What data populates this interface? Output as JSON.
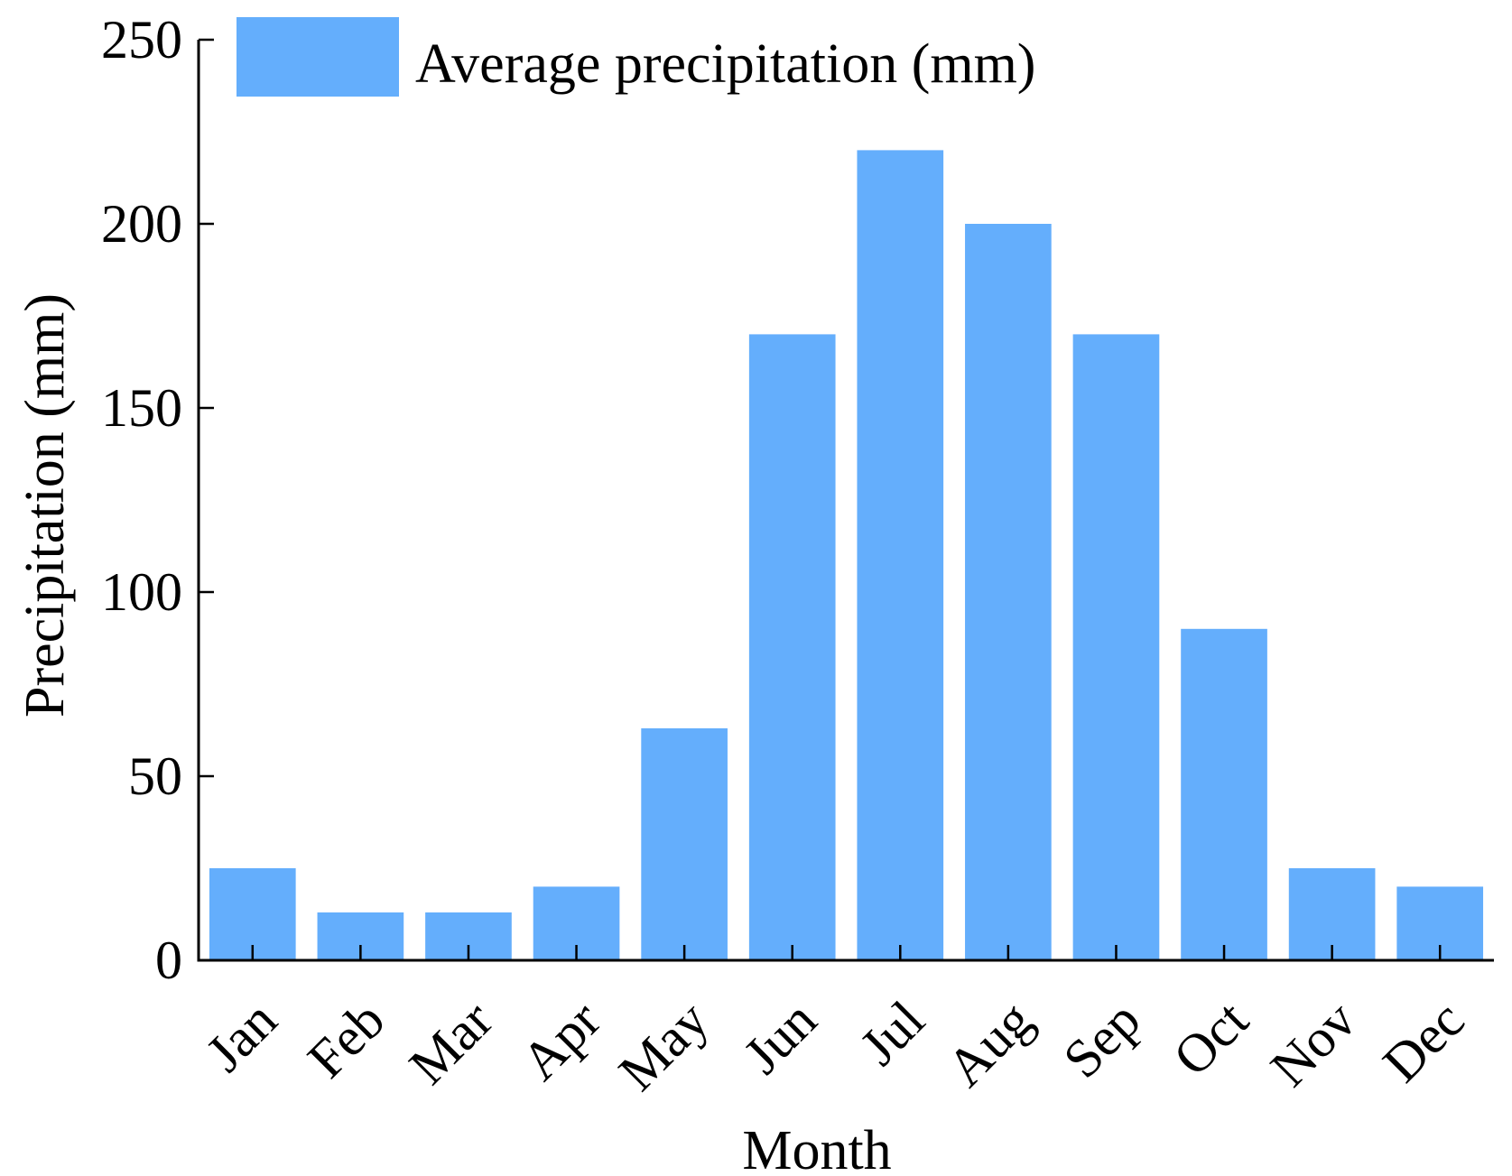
{
  "chart_data": {
    "type": "bar",
    "title": "",
    "xlabel": "Month",
    "ylabel": "Precipitation (mm)",
    "ylim": [
      0,
      250
    ],
    "yticks": [
      0,
      50,
      100,
      150,
      200,
      250
    ],
    "grid": false,
    "legend": {
      "position": "top-left",
      "label": "Average precipitation (mm)"
    },
    "bar_color": "#64aefc",
    "axis_color": "#000000",
    "categories": [
      "Jan",
      "Feb",
      "Mar",
      "Apr",
      "May",
      "Jun",
      "Jul",
      "Aug",
      "Sep",
      "Oct",
      "Nov",
      "Dec"
    ],
    "series": [
      {
        "name": "Average precipitation (mm)",
        "values": [
          25,
          13,
          13,
          20,
          63,
          170,
          220,
          200,
          170,
          90,
          25,
          20
        ]
      }
    ]
  }
}
